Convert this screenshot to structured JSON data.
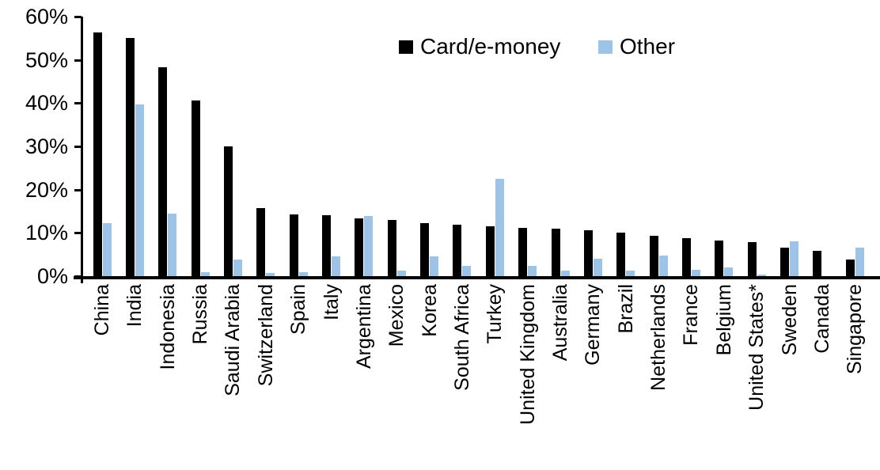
{
  "chart_data": {
    "type": "bar",
    "title": "",
    "xlabel": "",
    "ylabel": "",
    "ylim": [
      0,
      60
    ],
    "yticks": [
      {
        "value": 0,
        "label": "0%"
      },
      {
        "value": 10,
        "label": "10%"
      },
      {
        "value": 20,
        "label": "20%"
      },
      {
        "value": 30,
        "label": "30%"
      },
      {
        "value": 40,
        "label": "40%"
      },
      {
        "value": 50,
        "label": "50%"
      },
      {
        "value": 60,
        "label": "60%"
      }
    ],
    "grid": false,
    "legend_position": "top-center",
    "categories": [
      "China",
      "India",
      "Indonesia",
      "Russia",
      "Saudi Arabia",
      "Switzerland",
      "Spain",
      "Italy",
      "Argentina",
      "Mexico",
      "Korea",
      "South Africa",
      "Turkey",
      "United Kingdom",
      "Australia",
      "Germany",
      "Brazil",
      "Netherlands",
      "France",
      "Belgium",
      "United States*",
      "Sweden",
      "Canada",
      "Singapore"
    ],
    "series": [
      {
        "name": "Card/e-money",
        "color": "#000000",
        "values": [
          56.3,
          55.0,
          48.3,
          40.6,
          30.0,
          15.7,
          14.2,
          14.1,
          13.4,
          13.0,
          12.2,
          11.8,
          11.6,
          11.1,
          10.9,
          10.7,
          10.0,
          9.3,
          8.7,
          8.3,
          7.9,
          6.5,
          5.9,
          3.9
        ]
      },
      {
        "name": "Other",
        "color": "#9DC3E6",
        "values": [
          12.3,
          39.7,
          14.5,
          1.0,
          3.8,
          0.8,
          1.0,
          4.6,
          13.9,
          1.3,
          4.6,
          2.4,
          22.5,
          2.3,
          1.2,
          4.0,
          1.2,
          4.8,
          1.5,
          2.0,
          0.3,
          8.1,
          0.0,
          6.6
        ]
      }
    ]
  }
}
